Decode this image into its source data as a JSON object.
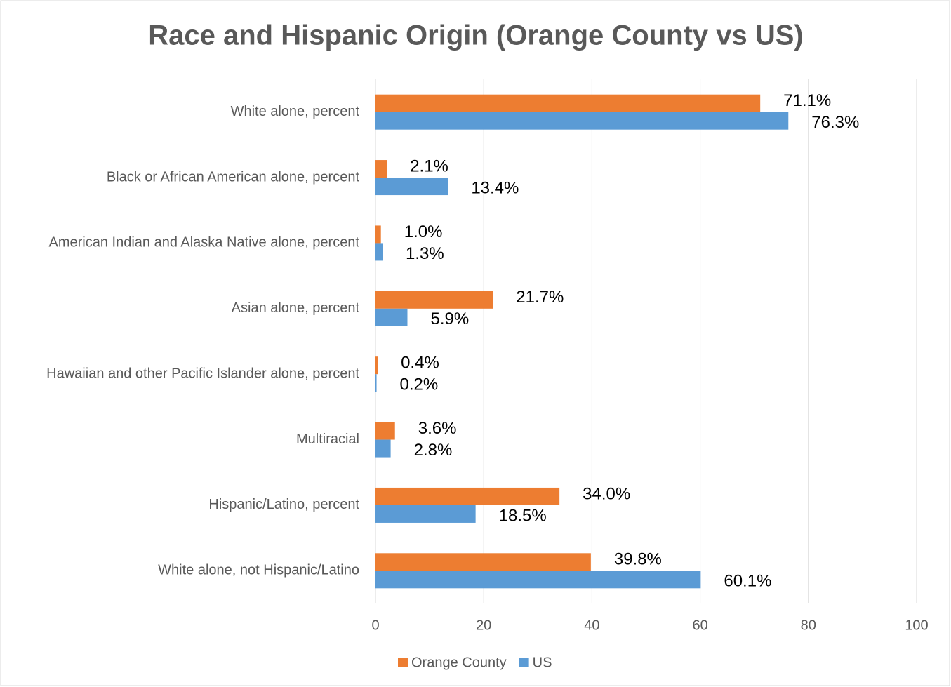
{
  "chart_data": {
    "type": "barh",
    "title": "Race and Hispanic Origin (Orange County vs US)",
    "categories": [
      "White alone, percent",
      "Black or African American alone, percent",
      "American Indian and Alaska Native alone, percent",
      "Asian alone, percent",
      "Hawaiian and other Pacific Islander alone, percent",
      "Multiracial",
      "Hispanic/Latino, percent",
      "White alone, not Hispanic/Latino"
    ],
    "series": [
      {
        "name": "Orange County",
        "color": "#ed7d31",
        "values": [
          71.1,
          2.1,
          1.0,
          21.7,
          0.4,
          3.6,
          34.0,
          39.8
        ],
        "value_labels": [
          "71.1%",
          "2.1%",
          "1.0%",
          "21.7%",
          "0.4%",
          "3.6%",
          "34.0%",
          "39.8%"
        ]
      },
      {
        "name": "US",
        "color": "#5b9bd5",
        "values": [
          76.3,
          13.4,
          1.3,
          5.9,
          0.2,
          2.8,
          18.5,
          60.1
        ],
        "value_labels": [
          "76.3%",
          "13.4%",
          "1.3%",
          "5.9%",
          "0.2%",
          "2.8%",
          "18.5%",
          "60.1%"
        ]
      }
    ],
    "xlim": [
      0,
      100
    ],
    "xticks": [
      0,
      20,
      40,
      60,
      80,
      100
    ],
    "grid": true,
    "legend": "bottom"
  }
}
